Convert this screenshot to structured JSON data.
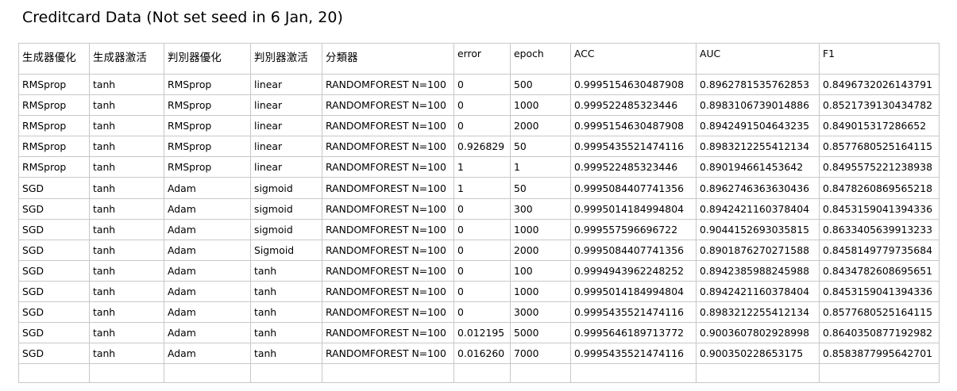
{
  "title": "Creditcard Data (Not set seed in 6 Jan, 20)",
  "columns": [
    "生成器優化",
    "生成器激活",
    "判別器優化",
    "判別器激活",
    "分類器",
    "error",
    "epoch",
    "ACC",
    "AUC",
    "F1"
  ],
  "rows": [
    [
      "RMSprop",
      "tanh",
      "RMSprop",
      "linear",
      "RANDOMFOREST N=100",
      "0",
      "500",
      "0.9995154630487908",
      "0.8962781535762853",
      "0.8496732026143791"
    ],
    [
      "RMSprop",
      "tanh",
      "RMSprop",
      "linear",
      "RANDOMFOREST N=100",
      "0",
      "1000",
      "0.999522485323446",
      "0.8983106739014886",
      "0.8521739130434782"
    ],
    [
      "RMSprop",
      "tanh",
      "RMSprop",
      "linear",
      "RANDOMFOREST N=100",
      "0",
      "2000",
      "0.9995154630487908",
      "0.8942491504643235",
      "0.849015317286652"
    ],
    [
      "RMSprop",
      "tanh",
      "RMSprop",
      "linear",
      "RANDOMFOREST N=100",
      "0.926829",
      "50",
      "0.9995435521474116",
      "0.8983212255412134",
      "0.8577680525164115"
    ],
    [
      "RMSprop",
      "tanh",
      "RMSprop",
      "linear",
      "RANDOMFOREST N=100",
      "1",
      "1",
      "0.999522485323446",
      "0.890194661453642",
      "0.8495575221238938"
    ],
    [
      "SGD",
      "tanh",
      "Adam",
      "sigmoid",
      "RANDOMFOREST N=100",
      "1",
      "50",
      "0.9995084407741356",
      "0.8962746363630436",
      "0.8478260869565218"
    ],
    [
      "SGD",
      "tanh",
      "Adam",
      "sigmoid",
      "RANDOMFOREST N=100",
      "0",
      "300",
      "0.9995014184994804",
      "0.8942421160378404",
      "0.8453159041394336"
    ],
    [
      "SGD",
      "tanh",
      "Adam",
      "sigmoid",
      "RANDOMFOREST N=100",
      "0",
      "1000",
      "0.999557596696722",
      "0.9044152693035815",
      "0.8633405639913233"
    ],
    [
      "SGD",
      "tanh",
      "Adam",
      "Sigmoid",
      "RANDOMFOREST N=100",
      "0",
      "2000",
      "0.9995084407741356",
      "0.8901876270271588",
      "0.8458149779735684"
    ],
    [
      "SGD",
      "tanh",
      "Adam",
      "tanh",
      "RANDOMFOREST N=100",
      "0",
      "100",
      "0.9994943962248252",
      "0.8942385988245988",
      "0.8434782608695651"
    ],
    [
      "SGD",
      "tanh",
      "Adam",
      "tanh",
      "RANDOMFOREST N=100",
      "0",
      "1000",
      "0.9995014184994804",
      "0.8942421160378404",
      "0.8453159041394336"
    ],
    [
      "SGD",
      "tanh",
      "Adam",
      "tanh",
      "RANDOMFOREST N=100",
      "0",
      "3000",
      "0.9995435521474116",
      "0.8983212255412134",
      "0.8577680525164115"
    ],
    [
      "SGD",
      "tanh",
      "Adam",
      "tanh",
      "RANDOMFOREST N=100",
      "0.012195",
      "5000",
      "0.9995646189713772",
      "0.9003607802928998",
      "0.8640350877192982"
    ],
    [
      "SGD",
      "tanh",
      "Adam",
      "tanh",
      "RANDOMFOREST N=100",
      "0.016260",
      "7000",
      "0.9995435521474116",
      "0.900350228653175",
      "0.8583877995642701"
    ]
  ],
  "colors": {
    "gridline": "#c8c8c8",
    "text": "#000000",
    "background": "#ffffff"
  }
}
